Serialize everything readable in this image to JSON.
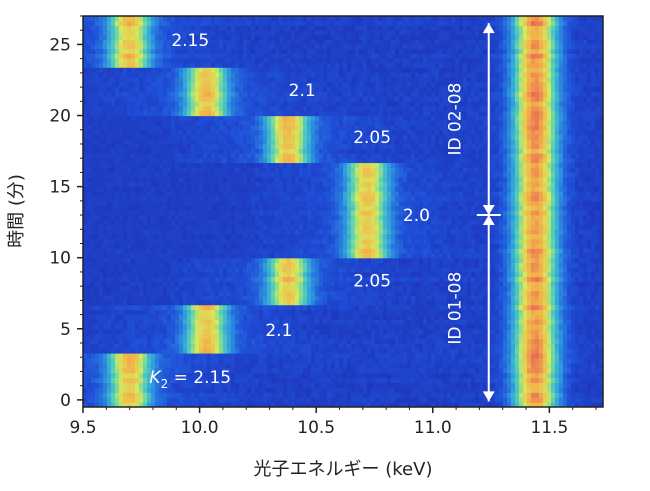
{
  "chart_data": {
    "type": "heatmap",
    "title": "",
    "xlabel": "光子エネルギー (keV)",
    "ylabel": "時間 (分)",
    "xlim": [
      9.5,
      11.73
    ],
    "ylim": [
      -0.5,
      27.0
    ],
    "x_ticks": [
      9.5,
      10.0,
      10.5,
      11.0,
      11.5
    ],
    "x_tick_labels": [
      "9.5",
      "10.0",
      "10.5",
      "11.0",
      "11.5"
    ],
    "y_ticks": [
      0,
      5,
      10,
      15,
      20,
      25
    ],
    "y_tick_labels": [
      "0",
      "5",
      "10",
      "15",
      "20",
      "25"
    ],
    "colormap": [
      "#1c1c9a",
      "#1f4fd8",
      "#2f9be0",
      "#56d3b5",
      "#d9e85a",
      "#f2b34a",
      "#e8605a"
    ],
    "fixed_peak": {
      "energy_keV": 11.44,
      "width_keV": 0.09
    },
    "segments": [
      {
        "t_start": -0.5,
        "t_end": 3.3,
        "K": "K2 = 2.15",
        "peak_keV": 9.7,
        "id": "ID 01-08"
      },
      {
        "t_start": 3.3,
        "t_end": 6.7,
        "K": "2.1",
        "peak_keV": 10.03,
        "id": "ID 01-08"
      },
      {
        "t_start": 6.7,
        "t_end": 10.0,
        "K": "2.05",
        "peak_keV": 10.38,
        "id": "ID 01-08"
      },
      {
        "t_start": 10.0,
        "t_end": 16.7,
        "K": "2.0",
        "peak_keV": 10.72,
        "id": "ID 01-08 / ID 02-08"
      },
      {
        "t_start": 16.7,
        "t_end": 20.0,
        "K": "2.05",
        "peak_keV": 10.38,
        "id": "ID 02-08"
      },
      {
        "t_start": 20.0,
        "t_end": 23.4,
        "K": "2.1",
        "peak_keV": 10.03,
        "id": "ID 02-08"
      },
      {
        "t_start": 23.4,
        "t_end": 27.0,
        "K": "2.15",
        "peak_keV": 9.7,
        "id": "ID 02-08"
      }
    ],
    "annotations": [
      {
        "text": "2.15",
        "x": 9.96,
        "y": 25.3
      },
      {
        "text": "2.1",
        "x": 10.44,
        "y": 21.8
      },
      {
        "text": "2.05",
        "x": 10.74,
        "y": 18.5
      },
      {
        "text": "2.0",
        "x": 10.93,
        "y": 13.0
      },
      {
        "text": "2.05",
        "x": 10.74,
        "y": 8.4
      },
      {
        "text": "2.1",
        "x": 10.34,
        "y": 4.9
      },
      {
        "text": "= 2.15",
        "x": 9.96,
        "y": 1.6,
        "prefix": "K",
        "subscript": "2"
      }
    ],
    "range_markers": [
      {
        "label": "ID 02-08",
        "from": 13.0,
        "to": 26.5,
        "x": 11.24
      },
      {
        "label": "ID 01-08",
        "from": -0.1,
        "to": 13.0,
        "x": 11.24
      }
    ],
    "marker_value": 13.0
  }
}
